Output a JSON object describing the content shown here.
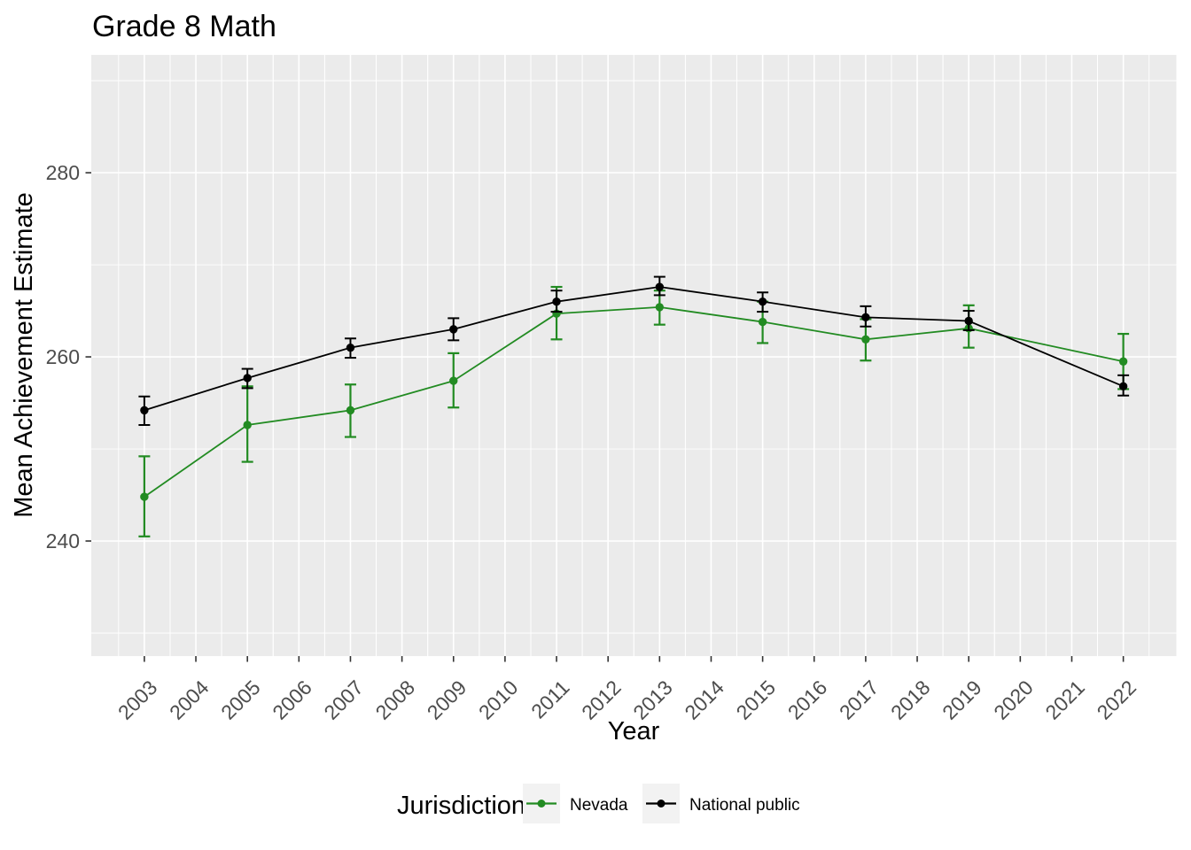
{
  "page": {
    "background": "#FFFFFF"
  },
  "chart_data": {
    "type": "line",
    "title": "Grade 8 Math",
    "xlabel": "Year",
    "ylabel": "Mean Achievement Estimate",
    "legend_title": "Jurisdiction",
    "legend_position": "bottom",
    "panel_background": "#EBEBEB",
    "grid_color": "#FFFFFF",
    "tick_color": "#333333",
    "tick_label_color": "#4D4D4D",
    "legend_key_background": "#F2F2F2",
    "x_ticks": [
      2003,
      2004,
      2005,
      2006,
      2007,
      2008,
      2009,
      2010,
      2011,
      2012,
      2013,
      2014,
      2015,
      2016,
      2017,
      2018,
      2019,
      2020,
      2021,
      2022
    ],
    "y_ticks": [
      240,
      260,
      280
    ],
    "y_minor": [
      230,
      250,
      270,
      290
    ],
    "xlim": [
      2001.97,
      2023.03
    ],
    "ylim": [
      227.5,
      292.8
    ],
    "error_bars": true,
    "series": [
      {
        "name": "Nevada",
        "color": "#228B22",
        "x": [
          2003,
          2005,
          2007,
          2009,
          2011,
          2013,
          2015,
          2017,
          2019,
          2022
        ],
        "values": [
          244.8,
          252.6,
          254.2,
          257.4,
          264.7,
          265.4,
          263.8,
          261.9,
          263.1,
          259.5
        ],
        "ci_low": [
          240.5,
          248.6,
          251.3,
          254.5,
          261.9,
          263.5,
          261.5,
          259.6,
          261.0,
          256.5
        ],
        "ci_high": [
          249.2,
          256.8,
          257.0,
          260.4,
          267.6,
          267.2,
          266.0,
          264.1,
          265.6,
          262.5
        ]
      },
      {
        "name": "National public",
        "color": "#000000",
        "x": [
          2003,
          2005,
          2007,
          2009,
          2011,
          2013,
          2015,
          2017,
          2019,
          2022
        ],
        "values": [
          254.2,
          257.7,
          261.0,
          263.0,
          266.0,
          267.6,
          266.0,
          264.3,
          263.9,
          256.8
        ],
        "ci_low": [
          252.6,
          256.6,
          259.9,
          261.8,
          264.9,
          266.7,
          264.9,
          263.3,
          262.9,
          255.8
        ],
        "ci_high": [
          255.7,
          258.7,
          262.0,
          264.2,
          267.2,
          268.7,
          267.0,
          265.5,
          265.0,
          258.0
        ]
      }
    ]
  }
}
